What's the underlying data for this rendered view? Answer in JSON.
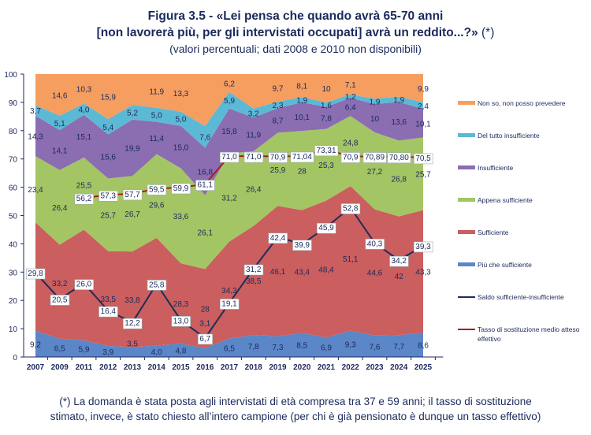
{
  "title": {
    "line1": "Figura 3.5 - «Lei pensa che quando avrà 65-70 anni",
    "line2": "[non lavorerà più, per gli intervistati occupati] avrà un reddito...?»",
    "line2_note": "(*)",
    "subtitle": "(valori percentuali; dati 2008 e 2010 non disponibili)"
  },
  "footnote": {
    "line1": "(*) La domanda è stata posta agli intervistati di età compresa tra 37 e 59 anni; il tasso di sostituzione",
    "line2": "stimato, invece, è stato chiesto all’intero campione (per chi è già pensionato è dunque un tasso effettivo)"
  },
  "chart_data": {
    "type": "area",
    "stacked": true,
    "ylim": [
      0,
      100
    ],
    "yticks": [
      0,
      10,
      20,
      30,
      40,
      50,
      60,
      70,
      80,
      90,
      100
    ],
    "legend_position": "right",
    "categories": [
      "2007",
      "2009",
      "2011",
      "2012",
      "2013",
      "2014",
      "2015",
      "2016",
      "2017",
      "2018",
      "2019",
      "2020",
      "2021",
      "2022",
      "2023",
      "2024",
      "2025"
    ],
    "series": [
      {
        "name": "Più che sufficiente",
        "color": "#5B86C7",
        "values": [
          9.2,
          6.5,
          5.9,
          3.9,
          3.5,
          4.0,
          4.8,
          3.1,
          6.5,
          7.8,
          7.3,
          8.5,
          6.9,
          9.3,
          7.6,
          7.7,
          8.6
        ],
        "labels": [
          "9,2",
          "6,5",
          "5,9",
          "3,9",
          "3,5",
          "4,0",
          "4,8",
          "3,1",
          "6,5",
          "7,8",
          "7,3",
          "8,5",
          "6,9",
          "9,3",
          "7,6",
          "7,7",
          "8,6"
        ]
      },
      {
        "name": "Sufficiente",
        "color": "#CB5E5E",
        "values": [
          38.4,
          33.2,
          39.1,
          33.5,
          33.8,
          38.1,
          28.3,
          28,
          34.3,
          38.5,
          46.1,
          43.4,
          48.4,
          51.1,
          44.6,
          42,
          43.3
        ],
        "labels": [
          "",
          "33,2",
          "",
          "33,5",
          "33,8",
          "",
          "28,3",
          "28",
          "34,3",
          "38,5",
          "46,1",
          "43,4",
          "48,4",
          "51,1",
          "44,6",
          "42",
          "43,3"
        ]
      },
      {
        "name": "Appena sufficiente",
        "color": "#A4C564",
        "values": [
          23.4,
          26.4,
          25.5,
          25.7,
          26.7,
          29.6,
          33.6,
          26.1,
          31.2,
          26.4,
          25.9,
          28,
          25.3,
          24.8,
          27.2,
          26.8,
          25.7
        ],
        "labels": [
          "23,4",
          "26,4",
          "25,5",
          "25,7",
          "26,7",
          "29,6",
          "33,6",
          "26,1",
          "31,2",
          "26,4",
          "25,9",
          "28",
          "25,3",
          "24,8",
          "27,2",
          "26,8",
          "25,7"
        ]
      },
      {
        "name": "Insufficiente",
        "color": "#8B6DB2",
        "values": [
          14.3,
          14.1,
          15.1,
          15.6,
          19.9,
          11.4,
          15.0,
          16.8,
          15.8,
          11.9,
          8.7,
          10.1,
          7.8,
          6.4,
          10,
          13.6,
          10.1
        ],
        "labels": [
          "14,3",
          "14,1",
          "15,1",
          "15,6",
          "19,9",
          "11,4",
          "15,0",
          "16,8",
          "15,8",
          "11,9",
          "8,7",
          "10,1",
          "7,8",
          "6,4",
          "10",
          "13,6",
          "10,1"
        ]
      },
      {
        "name": "Del tutto insufficiente",
        "color": "#5CB9D5",
        "values": [
          3.7,
          5.1,
          4.0,
          5.4,
          5.2,
          5.0,
          5.0,
          7.6,
          5.9,
          3.2,
          2.3,
          1.9,
          1.6,
          1.2,
          1.9,
          1.9,
          2.4
        ],
        "labels": [
          "3,7",
          "5,1",
          "4,0",
          "5,4",
          "5,2",
          "5,0",
          "5,0",
          "7,6",
          "5,9",
          "3,2",
          "2,3",
          "1,9",
          "1,6",
          "1,2",
          "1,9",
          "1,9",
          "2,4"
        ]
      },
      {
        "name": "Non so, non posso prevedere",
        "color": "#F59E60",
        "values": [
          11.0,
          14.6,
          10.3,
          15.9,
          10.9,
          11.9,
          13.3,
          18.4,
          6.2,
          12.2,
          9.7,
          8.1,
          10,
          7.1,
          8.7,
          8.0,
          9.9
        ],
        "labels": [
          "",
          "14,6",
          "10,3",
          "15,9",
          "",
          "11,9",
          "13,3",
          "",
          "6,2",
          "",
          "9,7",
          "8,1",
          "10",
          "7,1",
          "",
          "",
          "9,9"
        ]
      }
    ],
    "lines": [
      {
        "name": "Saldo sufficiente-insufficiente",
        "color": "#1F2C58",
        "values": [
          29.8,
          20.5,
          26.0,
          16.4,
          12.2,
          25.8,
          13.0,
          6.7,
          19.1,
          31.2,
          42.4,
          39.9,
          45.9,
          52.8,
          40.3,
          34.2,
          39.3
        ],
        "labels": [
          "29,8",
          "20,5",
          "26,0",
          "16,4",
          "12,2",
          "25,8",
          "13,0",
          "6,7",
          "19,1",
          "31,2",
          "42,4",
          "39,9",
          "45,9",
          "52,8",
          "40,3",
          "34,2",
          "39,3"
        ]
      },
      {
        "name": "Tasso di sostituzione medio atteso effettivo",
        "color": "#A3201B",
        "values": [
          null,
          null,
          56.2,
          57.3,
          57.7,
          59.5,
          59.9,
          61.1,
          71.0,
          71.0,
          70.9,
          71.04,
          73.31,
          70.9,
          70.89,
          70.8,
          70.5
        ],
        "labels": [
          "",
          "",
          "56,2",
          "57,3",
          "57,7",
          "59,5",
          "59,9",
          "61,1",
          "71,0",
          "71,0",
          "70,9",
          "71,04",
          "73,31",
          "70,9",
          "70,89",
          "70,80",
          "70,5"
        ]
      }
    ]
  }
}
